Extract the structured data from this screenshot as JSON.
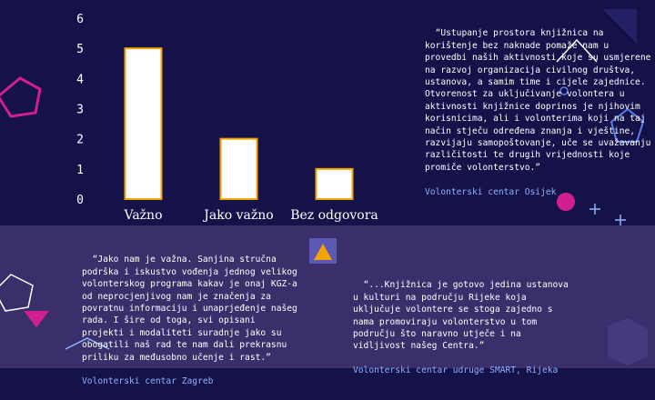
{
  "colors": {
    "background": "#15124a",
    "band": "#3a2f6b",
    "bar_fill": "#ffffff",
    "bar_stroke": "#f4a300",
    "axis_text": "#ffffff",
    "source_text": "#8fb3ff"
  },
  "chart_data": {
    "type": "bar",
    "categories": [
      "Važno",
      "Jako važno",
      "Bez odgovora"
    ],
    "values": [
      5,
      2,
      1
    ],
    "title": "",
    "xlabel": "",
    "ylabel": "",
    "ylim": [
      0,
      6
    ],
    "yticks": [
      "0",
      "1",
      "2",
      "3",
      "4",
      "5",
      "6"
    ],
    "grid": false,
    "legend": "none"
  },
  "quotes": [
    {
      "text": "“Ustupanje prostora knjižnica na korištenje bez naknade pomaže nam u provedbi naših aktivnosti koje su usmjerene na razvoj organizacija civilnog društva, ustanova, a samim time i cijele zajednice. Otvorenost za uključivanje volontera u aktivnosti knjižnice doprinos je njihovim korisnicima, ali i volonterima koji na taj način stječu određena znanja i vještine, razvijaju samopoštovanje, uče se uvažavanju različitosti te drugih vrijednosti koje promiče volonterstvo.”",
      "source": "Volonterski centar Osijek"
    },
    {
      "text": "“Jako nam je važna. Sanjina stručna podrška i iskustvo vođenja jednog velikog volonterskog programa kakav je onaj KGZ-a od neprocjenjivog nam je značenja za povratnu informaciju i unaprjeđenje našeg rada. I šire od toga, svi opisani projekti i modaliteti suradnje jako su obogatili naš rad te nam dali prekrasnu priliku za međusobno učenje i rast.”",
      "source": "Volonterski centar Zagreb"
    },
    {
      "text": "“...Knjižnica je gotovo jedina ustanova u kulturi na području Rijeke koja uključuje volontere se stoga zajedno s nama promoviraju volonterstvo u tom području što naravno utječe i na vidljivost našeg Centra.”",
      "source": "Volonterski centar udruge SMART, Rijeka"
    }
  ],
  "decorations": [
    "pentagon-icon",
    "hexagon-icon",
    "circle-icon",
    "triangle-icon",
    "chevron-icon",
    "plus-icon"
  ]
}
